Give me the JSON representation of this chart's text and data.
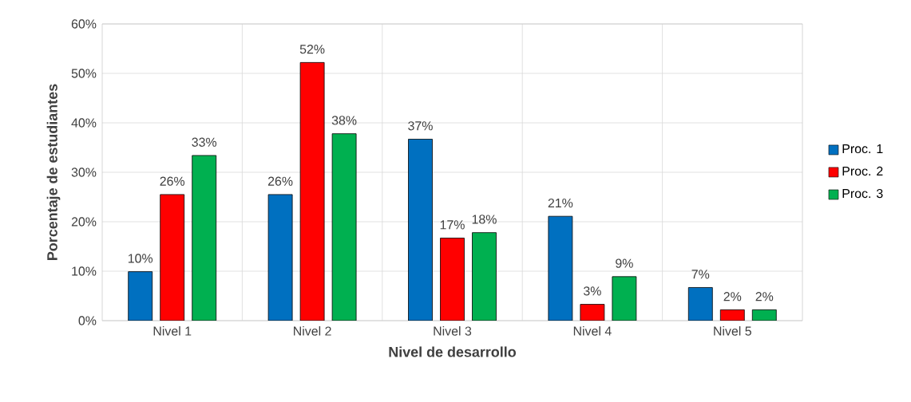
{
  "chart_data": {
    "type": "bar",
    "xlabel": "Nivel de desarrollo",
    "ylabel": "Porcentaje de estudiantes",
    "categories": [
      "Nivel 1",
      "Nivel 2",
      "Nivel 3",
      "Nivel 4",
      "Nivel 5"
    ],
    "series": [
      {
        "name": "Proc. 1",
        "color": "#0070c0",
        "values": [
          9.9,
          25.5,
          36.7,
          21.1,
          6.7
        ],
        "value_labels": [
          "10%",
          "26%",
          "37%",
          "21%",
          "7%"
        ]
      },
      {
        "name": "Proc. 2",
        "color": "#ff0000",
        "values": [
          25.5,
          52.2,
          16.7,
          3.3,
          2.2
        ],
        "value_labels": [
          "26%",
          "52%",
          "17%",
          "3%",
          "2%"
        ]
      },
      {
        "name": "Proc. 3",
        "color": "#00b050",
        "values": [
          33.4,
          37.8,
          17.8,
          8.9,
          2.2
        ],
        "value_labels": [
          "33%",
          "38%",
          "18%",
          "9%",
          "2%"
        ]
      }
    ],
    "ylim": [
      0,
      60
    ],
    "yticks": [
      {
        "value": 0,
        "label": "0%"
      },
      {
        "value": 10,
        "label": "10%"
      },
      {
        "value": 20,
        "label": "20%"
      },
      {
        "value": 30,
        "label": "30%"
      },
      {
        "value": 40,
        "label": "40%"
      },
      {
        "value": 50,
        "label": "50%"
      },
      {
        "value": 60,
        "label": "60%"
      }
    ],
    "grid": true,
    "legend": "right"
  }
}
